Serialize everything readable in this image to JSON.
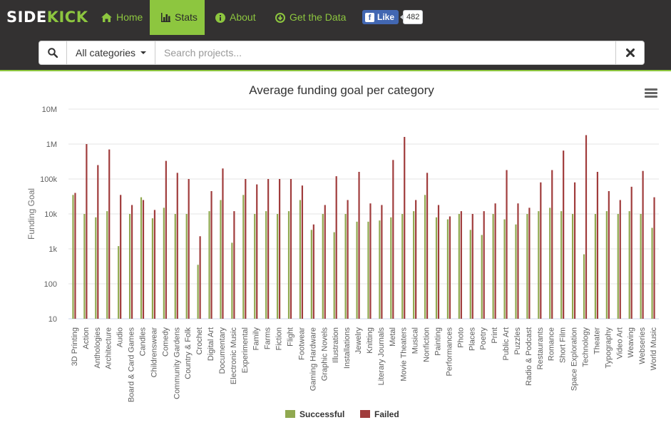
{
  "brand": {
    "part1": "SIDE",
    "part2": "KICK"
  },
  "nav": {
    "home": "Home",
    "stats": "Stats",
    "about": "About",
    "data": "Get the Data"
  },
  "facebook": {
    "like_label": "Like",
    "count": "482"
  },
  "search": {
    "category_label": "All categories",
    "placeholder": "Search projects..."
  },
  "colors": {
    "successful": "#90a950",
    "failed": "#a03c3c",
    "accent": "#8dc63f"
  },
  "chart_data": {
    "type": "bar",
    "title": "Average funding goal per category",
    "ylabel": "Funding Goal",
    "yscale": "log",
    "ylim": [
      10,
      10000000
    ],
    "y_ticks": [
      "10",
      "100",
      "1k",
      "10k",
      "100k",
      "1M",
      "10M"
    ],
    "grid": true,
    "legend_position": "bottom-center",
    "categories": [
      "3D Printing",
      "Action",
      "Anthologies",
      "Architecture",
      "Audio",
      "Board & Card Games",
      "Candles",
      "Childrenswear",
      "Comedy",
      "Community Gardens",
      "Country & Folk",
      "Crochet",
      "Digital Art",
      "Documentary",
      "Electronic Music",
      "Experimental",
      "Family",
      "Farms",
      "Fiction",
      "Flight",
      "Footwear",
      "Gaming Hardware",
      "Graphic Novels",
      "Illustration",
      "Installations",
      "Jewelry",
      "Knitting",
      "Literary Journals",
      "Metal",
      "Movie Theaters",
      "Musical",
      "Nonfiction",
      "Painting",
      "Performances",
      "Photo",
      "Places",
      "Poetry",
      "Print",
      "Public Art",
      "Puzzles",
      "Radio & Podcast",
      "Restaurants",
      "Romance",
      "Short Film",
      "Space Exploration",
      "Technology",
      "Theater",
      "Typography",
      "Video Art",
      "Weaving",
      "Webseries",
      "World Music"
    ],
    "series": [
      {
        "name": "Successful",
        "values": [
          35000,
          10000,
          8000,
          12000,
          1200,
          10000,
          30000,
          7500,
          15000,
          10000,
          10000,
          350,
          12000,
          25000,
          1500,
          35000,
          10000,
          12000,
          10000,
          12000,
          25000,
          3500,
          10000,
          3000,
          10000,
          6000,
          6000,
          6500,
          8000,
          10000,
          12000,
          35000,
          8000,
          7000,
          10000,
          3500,
          2500,
          10000,
          7000,
          5000,
          10000,
          12000,
          15000,
          12000,
          10000,
          700,
          10000,
          12000,
          10000,
          12000,
          10000,
          4000
        ]
      },
      {
        "name": "Failed",
        "values": [
          40000,
          1000000,
          250000,
          700000,
          35000,
          18000,
          25000,
          13000,
          330000,
          150000,
          100000,
          2300,
          45000,
          200000,
          12000,
          100000,
          70000,
          100000,
          100000,
          100000,
          65000,
          5000,
          18000,
          120000,
          25000,
          160000,
          20000,
          18000,
          350000,
          1600000,
          25000,
          150000,
          18000,
          8500,
          12000,
          10000,
          12000,
          20000,
          180000,
          20000,
          15000,
          80000,
          180000,
          650000,
          80000,
          1800000,
          160000,
          45000,
          25000,
          60000,
          170000,
          30000
        ]
      }
    ]
  }
}
